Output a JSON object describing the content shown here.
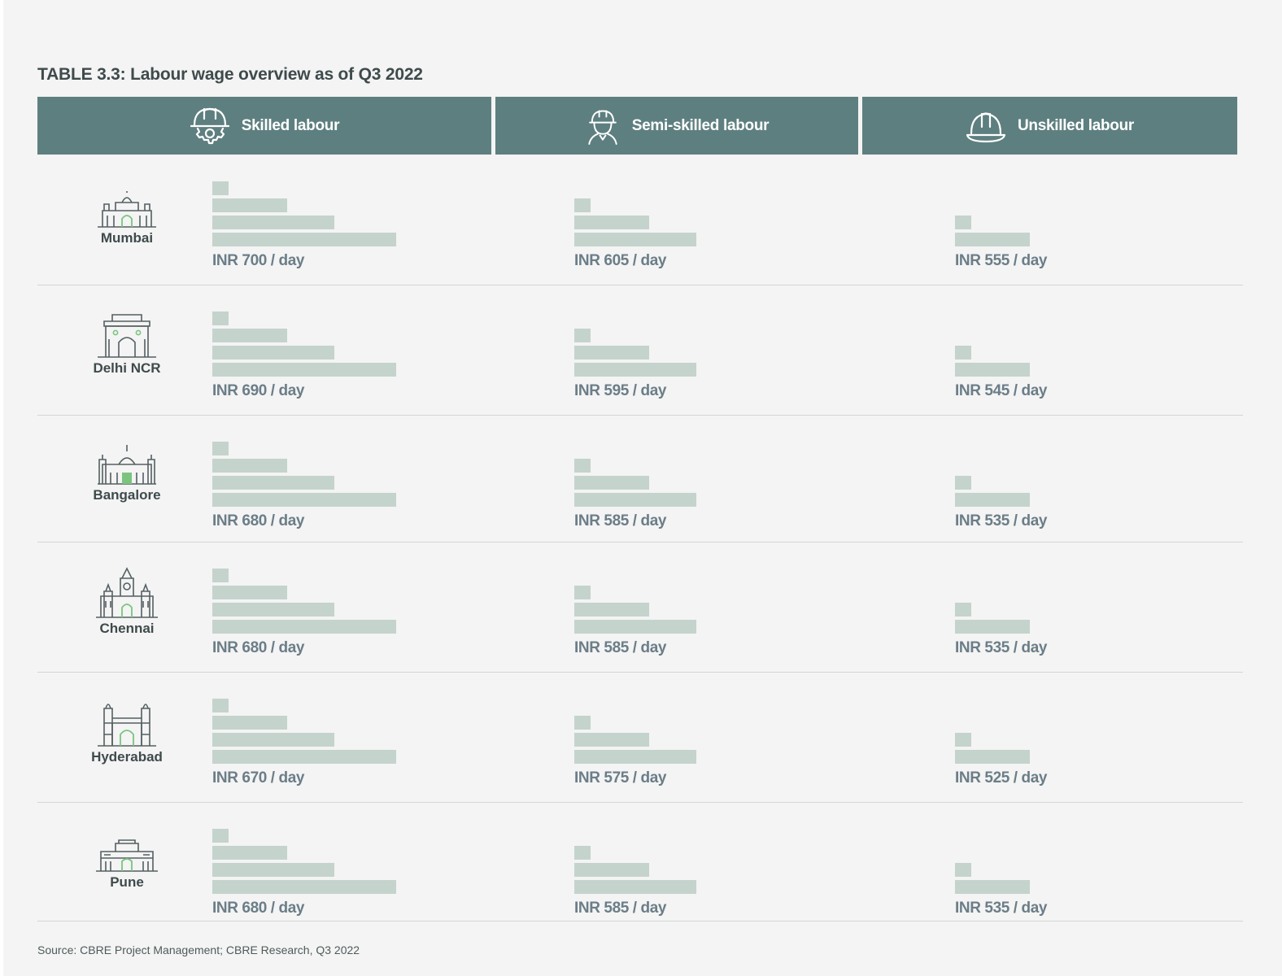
{
  "title": "TABLE 3.3: Labour wage overview as of Q3 2022",
  "headers": [
    {
      "label": "Skilled labour",
      "icon": "hardhat-gear-icon"
    },
    {
      "label": "Semi-skilled labour",
      "icon": "worker-hardhat-icon"
    },
    {
      "label": "Unskilled labour",
      "icon": "hardhat-icon"
    }
  ],
  "colors": {
    "header": "#5e7f80",
    "bar": "#c5d3cd",
    "accent": "#7bc47f"
  },
  "chart_data": {
    "type": "table",
    "columns": [
      "Skilled labour",
      "Semi-skilled labour",
      "Unskilled labour"
    ],
    "rows": [
      {
        "city": "Mumbai",
        "icon": "mumbai-landmark-icon",
        "values": [
          "INR 700 / day",
          "INR 605 / day",
          "INR 555 / day"
        ],
        "bar_levels": [
          4,
          3,
          2
        ]
      },
      {
        "city": "Delhi NCR",
        "icon": "india-gate-icon",
        "values": [
          "INR 690 / day",
          "INR 595 / day",
          "INR 545 / day"
        ],
        "bar_levels": [
          4,
          3,
          2
        ]
      },
      {
        "city": "Bangalore",
        "icon": "vidhana-soudha-icon",
        "values": [
          "INR 680 / day",
          "INR 585 / day",
          "INR 535 / day"
        ],
        "bar_levels": [
          4,
          3,
          2
        ]
      },
      {
        "city": "Chennai",
        "icon": "chennai-central-icon",
        "values": [
          "INR 680 / day",
          "INR 585 / day",
          "INR 535 / day"
        ],
        "bar_levels": [
          4,
          3,
          2
        ]
      },
      {
        "city": "Hyderabad",
        "icon": "charminar-icon",
        "values": [
          "INR 670 / day",
          "INR 575 / day",
          "INR 525 / day"
        ],
        "bar_levels": [
          4,
          3,
          2
        ]
      },
      {
        "city": "Pune",
        "icon": "shaniwar-wada-icon",
        "values": [
          "INR 680 / day",
          "INR 585 / day",
          "INR 535 / day"
        ],
        "bar_levels": [
          4,
          3,
          2
        ]
      }
    ]
  },
  "source": "Source: CBRE Project Management; CBRE Research, Q3 2022"
}
